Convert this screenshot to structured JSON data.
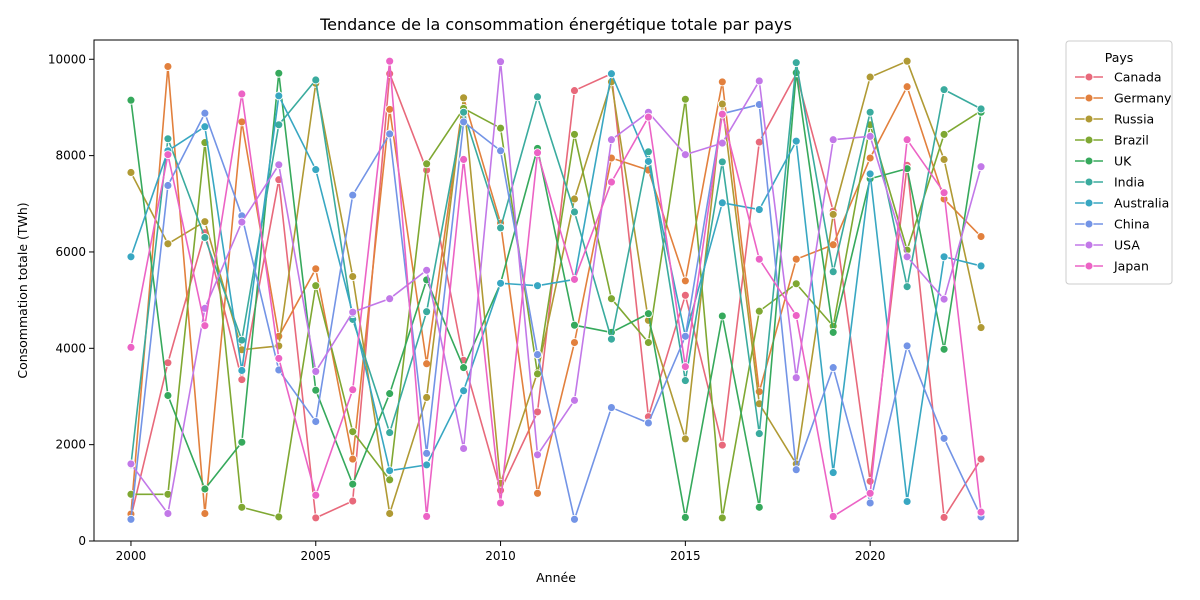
{
  "chart_data": {
    "type": "line",
    "title": "Tendance de la consommation énergétique totale par pays",
    "xlabel": "Année",
    "ylabel": "Consommation totale (TWh)",
    "xlim": [
      1999,
      2024
    ],
    "ylim": [
      0,
      10400
    ],
    "xticks": [
      2000,
      2005,
      2010,
      2015,
      2020
    ],
    "yticks": [
      0,
      2000,
      4000,
      6000,
      8000,
      10000
    ],
    "grid": false,
    "legend_title": "Pays",
    "legend_position": "outside-top-right",
    "x": [
      2000,
      2001,
      2002,
      2003,
      2004,
      2005,
      2006,
      2007,
      2008,
      2009,
      2010,
      2011,
      2012,
      2013,
      2014,
      2015,
      2016,
      2017,
      2018,
      2019,
      2020,
      2021,
      2022,
      2023
    ],
    "series": [
      {
        "name": "Canada",
        "color": "#e8697b",
        "values": [
          500,
          3700,
          6400,
          3350,
          7500,
          480,
          830,
          9700,
          7700,
          3750,
          1050,
          2680,
          9350,
          9700,
          2580,
          5100,
          1990,
          8280,
          9700,
          6850,
          1240,
          7800,
          490,
          1700
        ]
      },
      {
        "name": "Germany",
        "color": "#e2803d",
        "values": [
          560,
          9850,
          570,
          8700,
          4250,
          5650,
          1700,
          8960,
          3680,
          9200,
          6600,
          990,
          4120,
          7950,
          7700,
          5400,
          9530,
          3100,
          5850,
          6150,
          7950,
          9430,
          7100,
          6320
        ]
      },
      {
        "name": "Russia",
        "color": "#b09a34",
        "values": [
          7650,
          6170,
          6630,
          3970,
          4050,
          9500,
          5490,
          570,
          2980,
          9200,
          1200,
          3500,
          7100,
          9530,
          4580,
          2120,
          9070,
          2850,
          1600,
          6780,
          9630,
          9960,
          7920,
          4430
        ]
      },
      {
        "name": "Brazil",
        "color": "#7fa832",
        "values": [
          970,
          970,
          8270,
          700,
          500,
          5300,
          2270,
          1270,
          7830,
          8980,
          8570,
          3470,
          8440,
          5030,
          4120,
          9170,
          480,
          4770,
          5340,
          4460,
          8640,
          6040,
          8440,
          8930
        ]
      },
      {
        "name": "UK",
        "color": "#36a95c",
        "values": [
          9150,
          3020,
          1080,
          2050,
          9710,
          3130,
          1180,
          3060,
          5420,
          3600,
          5350,
          8150,
          4480,
          4330,
          4720,
          490,
          4670,
          700,
          9720,
          4330,
          7520,
          7730,
          3980,
          8900
        ]
      },
      {
        "name": "India",
        "color": "#3aab9e",
        "values": [
          1580,
          8350,
          6300,
          4170,
          8640,
          9570,
          4600,
          2250,
          4760,
          8900,
          6500,
          9220,
          6830,
          4190,
          8080,
          3330,
          7870,
          2230,
          9930,
          5590,
          8900,
          5280,
          9370,
          8970
        ]
      },
      {
        "name": "Australia",
        "color": "#38a7c2",
        "values": [
          5900,
          8100,
          8600,
          3540,
          9240,
          7710,
          4720,
          1460,
          1580,
          3120,
          5350,
          5300,
          5430,
          9700,
          7880,
          4250,
          7020,
          6880,
          8300,
          1420,
          7620,
          820,
          5900,
          5710
        ]
      },
      {
        "name": "China",
        "color": "#7394e6",
        "values": [
          450,
          7380,
          8880,
          6750,
          3550,
          2480,
          7180,
          8450,
          1820,
          8700,
          8100,
          3870,
          450,
          2770,
          2450,
          4250,
          8870,
          9060,
          1480,
          3600,
          790,
          4050,
          2130,
          500
        ]
      },
      {
        "name": "USA",
        "color": "#c278e8",
        "values": [
          1600,
          570,
          4830,
          6620,
          7810,
          3520,
          4750,
          5030,
          5620,
          1920,
          9950,
          1790,
          2920,
          8330,
          8900,
          8020,
          8260,
          9550,
          3390,
          8330,
          8400,
          5900,
          5020,
          7770
        ]
      },
      {
        "name": "Japan",
        "color": "#ec63c5",
        "values": [
          4020,
          8020,
          4470,
          9280,
          3790,
          950,
          3140,
          9960,
          510,
          7920,
          790,
          8060,
          5430,
          7450,
          8800,
          3620,
          8860,
          5850,
          4680,
          510,
          990,
          8330,
          7230,
          600
        ]
      }
    ]
  }
}
